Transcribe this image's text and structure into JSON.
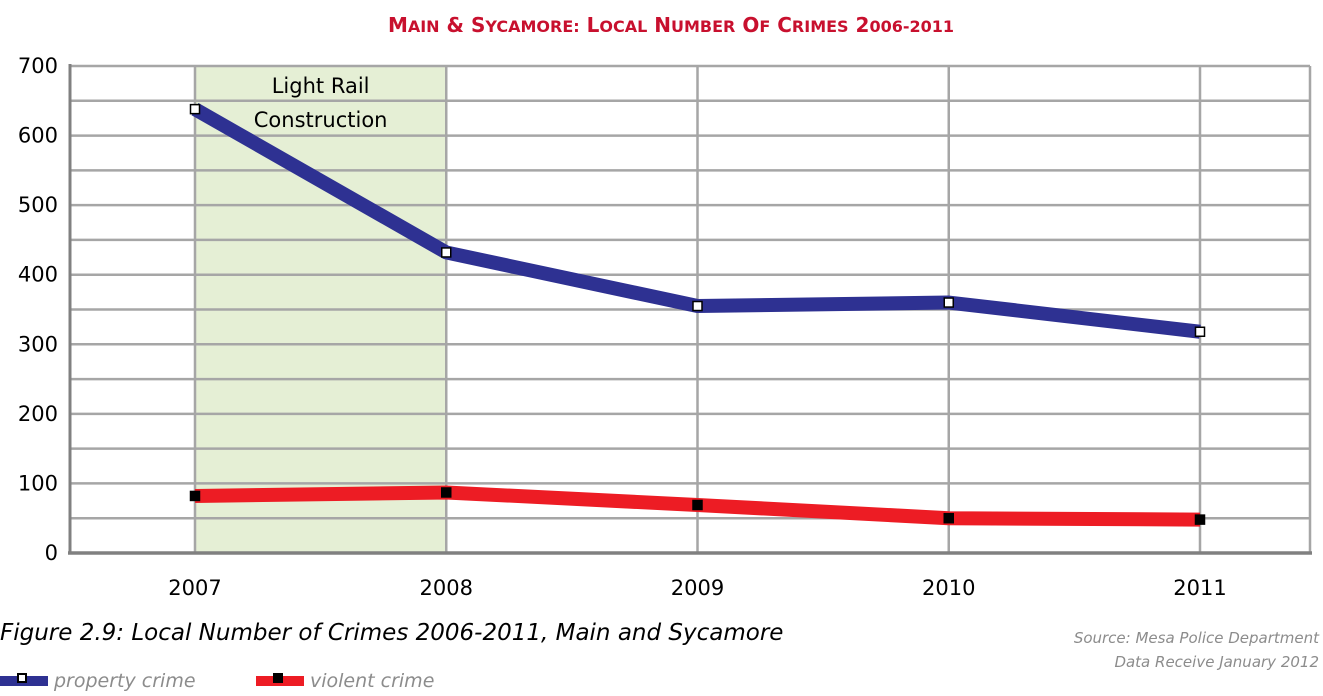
{
  "chart_data": {
    "type": "line",
    "title": "Main & Sycamore: Local Number of Crimes 2006-2011",
    "categories": [
      "2007",
      "2008",
      "2009",
      "2010",
      "2011"
    ],
    "series": [
      {
        "name": "property crime",
        "values": [
          638,
          432,
          355,
          360,
          318
        ],
        "color": "#2e3192",
        "marker_fill": "#ffffff"
      },
      {
        "name": "violent crime",
        "values": [
          82,
          87,
          69,
          50,
          48
        ],
        "color": "#ed1c24",
        "marker_fill": "#000000"
      }
    ],
    "ylim": [
      0,
      700
    ],
    "yticks": [
      0,
      100,
      200,
      300,
      400,
      500,
      600,
      700
    ],
    "grid": true,
    "annotation": {
      "text_line1": "Light Rail",
      "text_line2": "Construction",
      "from": "2007",
      "to": "2008",
      "fill": "#e5efd5"
    },
    "legend_position": "bottom-left"
  },
  "caption": "Figure 2.9: Local Number of Crimes 2006-2011, Main and Sycamore",
  "source_line1": "Source: Mesa Police Department",
  "source_line2": "Data Receive January 2012",
  "colors": {
    "title": "#c8102e",
    "grid": "#a6a6a6",
    "axis": "#808080"
  }
}
